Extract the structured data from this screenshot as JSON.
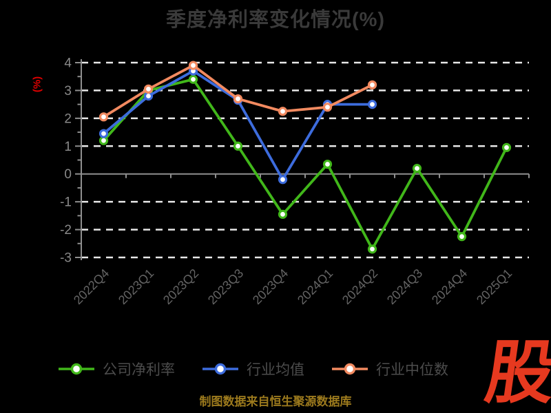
{
  "title": "季度净利率变化情况(%)",
  "y_axis_unit_label": "(%)",
  "footer": {
    "caption": "制图数据来自恒生聚源数据库",
    "logo_text": "股"
  },
  "colors": {
    "background": "#000000",
    "title": "#3a3a3a",
    "axis_line": "#8f8f8f",
    "gridline": "#e8e8e8",
    "y_tick_label": "#8a8a8a",
    "x_tick_label": "#636363",
    "legend_text": "#4c4c4c",
    "y_axis_unit_label": "#dd0000",
    "caption": "#9c7a1d",
    "logo": "#e6391f",
    "marker_fill": "#ffffff"
  },
  "chart_data": {
    "type": "line",
    "title": "季度净利率变化情况(%)",
    "xlabel": "",
    "ylabel": "(%)",
    "ylim": [
      -3,
      4
    ],
    "y_ticks": [
      4,
      3,
      2,
      1,
      0,
      -1,
      -2,
      -3
    ],
    "grid": "horizontal-dashed",
    "legend_position": "bottom",
    "categories": [
      "2022Q4",
      "2023Q1",
      "2023Q2",
      "2023Q3",
      "2023Q4",
      "2024Q1",
      "2024Q2",
      "2024Q3",
      "2024Q4",
      "2025Q1"
    ],
    "series": [
      {
        "name": "公司净利率",
        "color": "#41b71a",
        "values": [
          1.2,
          3.0,
          3.4,
          1.0,
          -1.45,
          0.35,
          -2.7,
          0.2,
          -2.25,
          0.95
        ]
      },
      {
        "name": "行业均值",
        "color": "#3d6cdd",
        "values": [
          1.45,
          2.8,
          3.7,
          2.65,
          -0.2,
          2.5,
          2.5,
          null,
          null,
          null
        ]
      },
      {
        "name": "行业中位数",
        "color": "#f28a60",
        "values": [
          2.05,
          3.05,
          3.9,
          2.7,
          2.25,
          2.4,
          3.2,
          null,
          null,
          null
        ]
      }
    ]
  }
}
